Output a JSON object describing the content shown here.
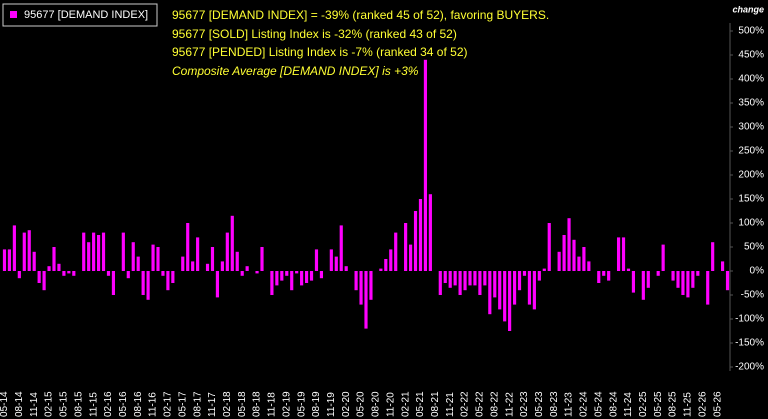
{
  "chart_data": {
    "type": "bar",
    "y_axis_label": "change",
    "annotations": [
      "95677 [DEMAND INDEX] = -39% (ranked 45 of 52), favoring BUYERS.",
      "95677 [SOLD] Listing Index is -32% (ranked 43 of 52)",
      "95677 [PENDED] Listing Index is -7% (ranked 34 of 52)",
      "Composite Average [DEMAND INDEX] is +3%"
    ],
    "categories": [
      "05-14",
      null,
      null,
      "08-14",
      null,
      null,
      "11-14",
      null,
      null,
      "02-15",
      null,
      null,
      "05-15",
      null,
      null,
      "08-15",
      null,
      null,
      "11-15",
      null,
      null,
      "02-16",
      null,
      null,
      "05-16",
      null,
      null,
      "08-16",
      null,
      null,
      "11-16",
      null,
      null,
      "02-17",
      null,
      null,
      "05-17",
      null,
      null,
      "08-17",
      null,
      null,
      "11-17",
      null,
      null,
      "02-18",
      null,
      null,
      "05-18",
      null,
      null,
      "08-18",
      null,
      null,
      "11-18",
      null,
      null,
      "02-19",
      null,
      null,
      "05-19",
      null,
      null,
      "08-19",
      null,
      null,
      "11-19",
      null,
      null,
      "02-20",
      null,
      null,
      "05-20",
      null,
      null,
      "08-20",
      null,
      null,
      "11-20",
      null,
      null,
      "02-21",
      null,
      null,
      "05-21",
      null,
      null,
      "08-21",
      null,
      null,
      "11-21",
      null,
      null,
      "02-22",
      null,
      null,
      "05-22",
      null,
      null,
      "08-22",
      null,
      null,
      "11-22",
      null,
      null,
      "02-23",
      null,
      null,
      "05-23",
      null,
      null,
      "08-23",
      null,
      null,
      "11-23",
      null,
      null,
      "02-24",
      null,
      null,
      "05-24",
      null,
      null,
      "08-24",
      null,
      null,
      "11-24",
      null,
      null,
      "02-25",
      null,
      null,
      "05-25",
      null,
      null,
      "08-25",
      null,
      null,
      "11-25",
      null,
      null,
      "02-26",
      null,
      null,
      "05-26",
      null,
      null
    ],
    "series": [
      {
        "name": "95677 [DEMAND INDEX]",
        "color": "#ff00ff",
        "values": [
          45,
          45,
          95,
          -15,
          80,
          85,
          40,
          -25,
          -40,
          10,
          50,
          15,
          -10,
          -5,
          -10,
          0,
          80,
          60,
          80,
          75,
          80,
          -10,
          -50,
          0,
          80,
          -15,
          60,
          30,
          -50,
          -60,
          55,
          50,
          -10,
          -40,
          -25,
          0,
          30,
          100,
          20,
          70,
          0,
          15,
          50,
          -55,
          20,
          80,
          115,
          40,
          -10,
          10,
          0,
          -5,
          50,
          0,
          -50,
          -30,
          -20,
          -10,
          -40,
          -5,
          -30,
          -25,
          -20,
          45,
          -15,
          0,
          45,
          30,
          95,
          10,
          0,
          -40,
          -70,
          -120,
          -60,
          0,
          5,
          25,
          45,
          80,
          0,
          100,
          55,
          125,
          150,
          440,
          160,
          0,
          -50,
          -25,
          -35,
          -30,
          -50,
          -40,
          -30,
          -30,
          -50,
          -30,
          -90,
          -55,
          -80,
          -105,
          -125,
          -70,
          -40,
          -10,
          -70,
          -80,
          -20,
          5,
          100,
          0,
          40,
          75,
          110,
          65,
          30,
          50,
          20,
          0,
          -25,
          -10,
          -20,
          0,
          70,
          70,
          5,
          -45,
          0,
          -60,
          -35,
          0,
          -10,
          55,
          0,
          -20,
          -35,
          -50,
          -55,
          -35,
          -10,
          0,
          -70,
          60,
          0,
          20,
          -40
        ]
      }
    ],
    "ylim": [
      -200,
      500
    ],
    "yticks": [
      {
        "value": 500,
        "label": "500%"
      },
      {
        "value": 450,
        "label": "450%"
      },
      {
        "value": 400,
        "label": "400%"
      },
      {
        "value": 350,
        "label": "350%"
      },
      {
        "value": 300,
        "label": "300%"
      },
      {
        "value": 250,
        "label": "250%"
      },
      {
        "value": 200,
        "label": "200%"
      },
      {
        "value": 150,
        "label": "150%"
      },
      {
        "value": 100,
        "label": "100%"
      },
      {
        "value": 50,
        "label": "50%"
      },
      {
        "value": 0,
        "label": "0%"
      },
      {
        "value": -50,
        "label": "-50%"
      },
      {
        "value": -100,
        "label": "-100%"
      },
      {
        "value": -150,
        "label": "-150%"
      },
      {
        "value": -200,
        "label": "-200%"
      }
    ],
    "grid": false
  }
}
